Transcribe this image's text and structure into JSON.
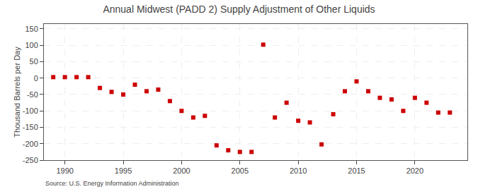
{
  "chart_data": {
    "type": "scatter",
    "title": "Annual Midwest (PADD 2) Supply Adjustment of Other Liquids",
    "ylabel": "Thousand Barrels per Day",
    "source": "Source: U.S. Energy Information Administration",
    "x": [
      1989,
      1990,
      1991,
      1992,
      1993,
      1994,
      1995,
      1996,
      1997,
      1998,
      1999,
      2000,
      2001,
      2002,
      2003,
      2004,
      2005,
      2006,
      2007,
      2008,
      2009,
      2010,
      2011,
      2012,
      2013,
      2014,
      2015,
      2016,
      2017,
      2018,
      2019,
      2020,
      2021,
      2022,
      2023
    ],
    "values": [
      3,
      3,
      3,
      3,
      -30,
      -42,
      -50,
      -20,
      -40,
      -35,
      -70,
      -100,
      -120,
      -115,
      -205,
      -220,
      -225,
      -225,
      102,
      -120,
      -75,
      -130,
      -135,
      -202,
      -110,
      -40,
      -10,
      -40,
      -60,
      -65,
      -100,
      -60,
      -75,
      -105,
      -105
    ],
    "xlim": [
      1988.2,
      2024.5
    ],
    "xticks": [
      1990,
      1995,
      2000,
      2005,
      2010,
      2015,
      2020
    ],
    "ylim": [
      -250,
      165
    ],
    "yticks": [
      -250,
      -200,
      -150,
      -100,
      -50,
      0,
      50,
      100,
      150
    ],
    "grid": true,
    "color": "#cc0000",
    "marker": "square"
  }
}
